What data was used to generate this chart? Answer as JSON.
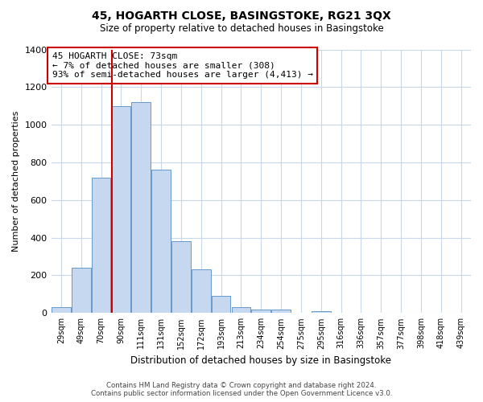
{
  "title": "45, HOGARTH CLOSE, BASINGSTOKE, RG21 3QX",
  "subtitle": "Size of property relative to detached houses in Basingstoke",
  "xlabel": "Distribution of detached houses by size in Basingstoke",
  "ylabel": "Number of detached properties",
  "bar_labels": [
    "29sqm",
    "49sqm",
    "70sqm",
    "90sqm",
    "111sqm",
    "131sqm",
    "152sqm",
    "172sqm",
    "193sqm",
    "213sqm",
    "234sqm",
    "254sqm",
    "275sqm",
    "295sqm",
    "316sqm",
    "336sqm",
    "357sqm",
    "377sqm",
    "398sqm",
    "418sqm",
    "439sqm"
  ],
  "bar_values": [
    30,
    240,
    720,
    1100,
    1120,
    760,
    380,
    230,
    90,
    30,
    20,
    20,
    0,
    10,
    0,
    0,
    0,
    0,
    0,
    0,
    0
  ],
  "bar_color": "#c5d8f0",
  "bar_edge_color": "#6699cc",
  "vline_x_index": 3,
  "vline_color": "#cc0000",
  "annotation_title": "45 HOGARTH CLOSE: 73sqm",
  "annotation_line1": "← 7% of detached houses are smaller (308)",
  "annotation_line2": "93% of semi-detached houses are larger (4,413) →",
  "annotation_box_color": "#ffffff",
  "annotation_box_edge": "#cc0000",
  "ylim": [
    0,
    1400
  ],
  "yticks": [
    0,
    200,
    400,
    600,
    800,
    1000,
    1200,
    1400
  ],
  "footer1": "Contains HM Land Registry data © Crown copyright and database right 2024.",
  "footer2": "Contains public sector information licensed under the Open Government Licence v3.0.",
  "bg_color": "#ffffff",
  "grid_color": "#c8d8e8"
}
